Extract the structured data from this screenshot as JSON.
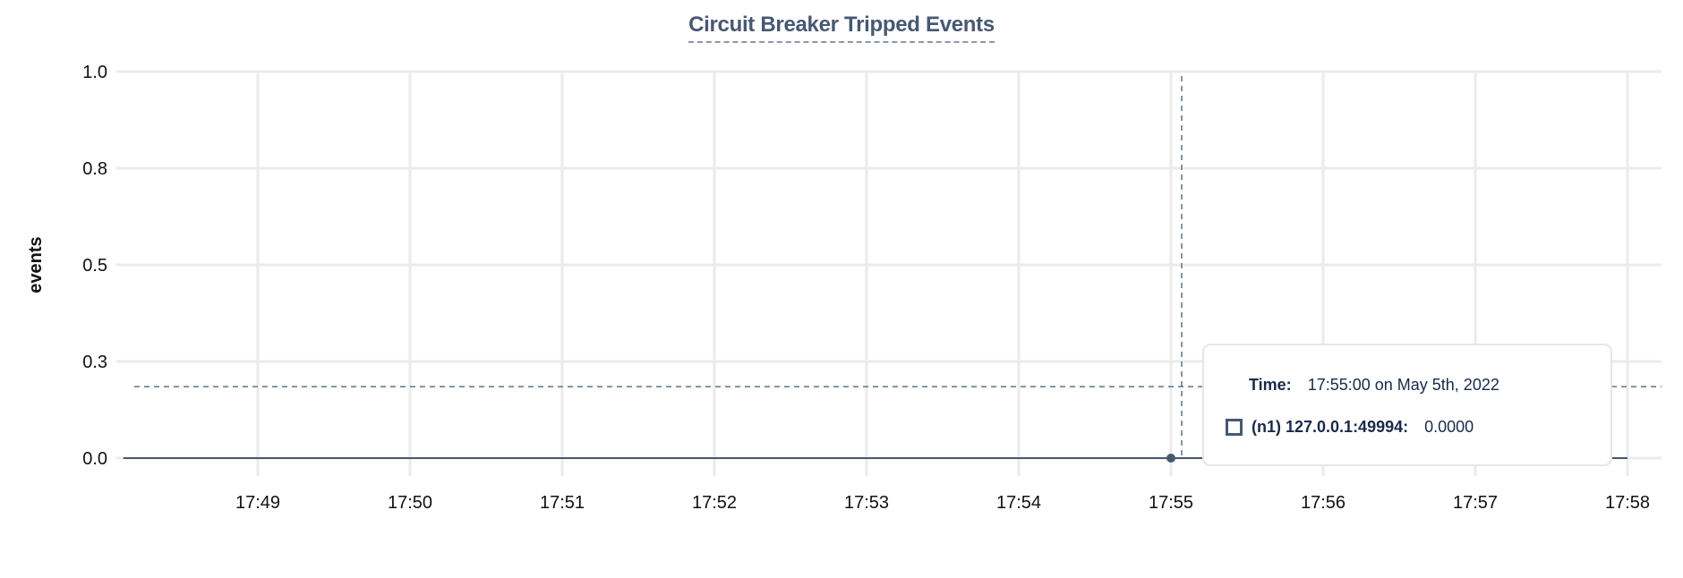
{
  "chart_data": {
    "type": "line",
    "title": "Circuit Breaker Tripped Events",
    "ylabel": "events",
    "xlabel": "",
    "ylim": [
      0,
      1
    ],
    "yticks": [
      0,
      0.25,
      0.5,
      0.75,
      1
    ],
    "ytick_labels": [
      "0.0",
      "0.3",
      "0.5",
      "0.8",
      "1.0"
    ],
    "xlim": [
      "17:48:12",
      "17:58:12"
    ],
    "xticks": [
      "17:49",
      "17:50",
      "17:51",
      "17:52",
      "17:53",
      "17:54",
      "17:55",
      "17:56",
      "17:57",
      "17:58"
    ],
    "grid": true,
    "series": [
      {
        "name": "(n1) 127.0.0.1:49994",
        "color": "#475872",
        "x": [
          "17:48:07",
          "17:58:00"
        ],
        "y": [
          0,
          0
        ]
      }
    ],
    "hover": {
      "x": "17:55:00",
      "y": 0,
      "crosshair_y": 0.185
    }
  },
  "tooltip": {
    "time_label": "Time:",
    "time_value": "17:55:00 on May 5th, 2022",
    "series_label": "(n1) 127.0.0.1:49994:",
    "series_value": "0.0000"
  }
}
